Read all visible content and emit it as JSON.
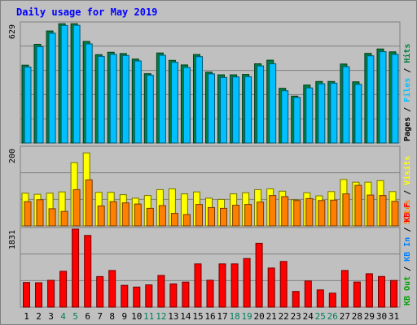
{
  "chart_data": {
    "type": "bar",
    "title": "Daily usage for May 2019",
    "x": [
      "1",
      "2",
      "3",
      "4",
      "5",
      "6",
      "7",
      "8",
      "9",
      "10",
      "11",
      "12",
      "13",
      "14",
      "15",
      "16",
      "17",
      "18",
      "19",
      "20",
      "21",
      "22",
      "23",
      "24",
      "25",
      "26",
      "27",
      "28",
      "29",
      "30",
      "31"
    ],
    "weekend_days": [
      "4",
      "5",
      "11",
      "12",
      "18",
      "19",
      "25",
      "26"
    ],
    "panels": [
      {
        "id": "top",
        "max_label": "629",
        "ymax": 629,
        "side_labels": [
          "Hits",
          "Files",
          "Pages"
        ],
        "series": [
          {
            "name": "Hits",
            "color": "#008040",
            "values": [
              410,
              520,
              590,
              628,
              628,
              535,
              465,
              478,
              471,
              442,
              365,
              474,
              435,
              411,
              466,
              373,
              359,
              359,
              361,
              417,
              436,
              288,
              247,
              305,
              324,
              324,
              416,
              322,
              472,
              495,
              480
            ]
          },
          {
            "name": "Files",
            "color": "#00c0ff",
            "values": [
              400,
              507,
              578,
              619,
              620,
              522,
              456,
              467,
              461,
              432,
              357,
              462,
              425,
              398,
              455,
              364,
              345,
              348,
              349,
              406,
              417,
              275,
              240,
              290,
              312,
              315,
              402,
              309,
              459,
              481,
              467
            ]
          }
        ]
      },
      {
        "id": "middle",
        "max_label": "200",
        "ymax": 200,
        "side_labels": [
          "Visits",
          "Sites"
        ],
        "series": [
          {
            "name": "Visits",
            "color": "#ffff00",
            "values": [
              84,
              81,
              84,
              87,
              162,
              187,
              86,
              86,
              80,
              71,
              78,
              93,
              95,
              82,
              87,
              71,
              68,
              82,
              85,
              93,
              95,
              89,
              67,
              85,
              77,
              88,
              119,
              112,
              112,
              116,
              88
            ]
          },
          {
            "name": "Sites",
            "color": "#ff8000",
            "values": [
              62,
              67,
              44,
              37,
              93,
              118,
              51,
              62,
              59,
              56,
              45,
              52,
              32,
              29,
              55,
              47,
              45,
              53,
              55,
              61,
              78,
              75,
              65,
              70,
              65,
              66,
              82,
              104,
              79,
              78,
              63
            ]
          }
        ]
      },
      {
        "id": "bottom",
        "max_label": "1831",
        "ymax": 1831,
        "side_labels": [
          "KB F",
          "KB In",
          "KB Out"
        ],
        "side_labels_separator": " / ",
        "series": [
          {
            "name": "KB F",
            "color": "#ff0000",
            "values": [
              578,
              572,
              630,
              842,
              1831,
              1682,
              718,
              860,
              512,
              472,
              522,
              744,
              545,
              587,
              1014,
              632,
              1014,
              1015,
              1140,
              1500,
              918,
              1072,
              368,
              614,
              404,
              328,
              860,
              589,
              783,
              720,
              626
            ]
          }
        ]
      }
    ],
    "colors": {
      "title": "#0000ff",
      "frame_bg": "#c0c0c0",
      "plot_bg": "#c0c0c0",
      "weekday_label": "#000000",
      "weekend_label": "#00805c"
    }
  }
}
